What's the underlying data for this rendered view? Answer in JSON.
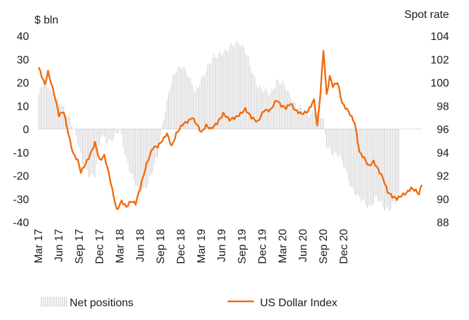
{
  "chart_data": {
    "type": "bar+line",
    "left_axis": {
      "unit": "$ bln",
      "range": [
        -40,
        40
      ],
      "ticks": [
        "40",
        "30",
        "20",
        "10",
        "0",
        "-10",
        "-20",
        "-30",
        "-40"
      ]
    },
    "right_axis": {
      "unit": "Spot rate",
      "range": [
        88,
        104
      ],
      "ticks": [
        "104",
        "102",
        "100",
        "98",
        "96",
        "94",
        "92",
        "90",
        "88"
      ]
    },
    "x_tick_labels": [
      "Mar 17",
      "Jun 17",
      "Sep 17",
      "Dec 17",
      "Mar 18",
      "Jun 18",
      "Sep 18",
      "Dec 18",
      "Mar 19",
      "Jun 19",
      "Sep 19",
      "Dec 19",
      "Mar 20",
      "Jun 20",
      "Sep 20",
      "Dec 20"
    ],
    "grid": false,
    "legend_position": "bottom",
    "legend": {
      "bars_label": "Net positions",
      "line_label": "US Dollar Index"
    },
    "colors": {
      "bars": "#c8c8c8",
      "line": "#f26a0a",
      "text": "#1a1a1a"
    },
    "bars_series": {
      "name": "Net positions",
      "unit": "$ bln",
      "start": "Mar 17",
      "frequency": "weekly",
      "anchors": [
        [
          0,
          15
        ],
        [
          4,
          20
        ],
        [
          8,
          17
        ],
        [
          12,
          12
        ],
        [
          16,
          8
        ],
        [
          20,
          5
        ],
        [
          24,
          -3
        ],
        [
          28,
          -15
        ],
        [
          32,
          -19
        ],
        [
          36,
          -20
        ],
        [
          40,
          -3
        ],
        [
          44,
          -5
        ],
        [
          48,
          -4
        ],
        [
          52,
          -1
        ],
        [
          56,
          -12
        ],
        [
          60,
          -21
        ],
        [
          64,
          -27
        ],
        [
          68,
          -25
        ],
        [
          72,
          -20
        ],
        [
          76,
          -12
        ],
        [
          80,
          6
        ],
        [
          84,
          18
        ],
        [
          88,
          25
        ],
        [
          92,
          28
        ],
        [
          96,
          22
        ],
        [
          100,
          15
        ],
        [
          104,
          22
        ],
        [
          108,
          26
        ],
        [
          112,
          31
        ],
        [
          116,
          33
        ],
        [
          120,
          33
        ],
        [
          124,
          36
        ],
        [
          128,
          38
        ],
        [
          132,
          33
        ],
        [
          136,
          25
        ],
        [
          140,
          19
        ],
        [
          144,
          16
        ],
        [
          148,
          15
        ],
        [
          152,
          21
        ],
        [
          156,
          19
        ],
        [
          160,
          15
        ],
        [
          164,
          11
        ],
        [
          168,
          8
        ],
        [
          172,
          6
        ],
        [
          176,
          8
        ],
        [
          180,
          5
        ],
        [
          182,
          3
        ],
        [
          184,
          -7
        ],
        [
          188,
          -10
        ],
        [
          192,
          -12
        ],
        [
          196,
          -17
        ],
        [
          200,
          -25
        ],
        [
          204,
          -30
        ],
        [
          208,
          -31
        ],
        [
          212,
          -33
        ],
        [
          216,
          -30
        ],
        [
          220,
          -33
        ],
        [
          224,
          -34
        ],
        [
          228,
          -32
        ],
        [
          230,
          -30
        ]
      ]
    },
    "line_series": {
      "name": "US Dollar Index",
      "unit": "index",
      "start": "Mar 17",
      "frequency": "weekly",
      "anchors": [
        [
          0,
          101.3
        ],
        [
          4,
          99.8
        ],
        [
          6,
          100.9
        ],
        [
          10,
          99.0
        ],
        [
          13,
          97.2
        ],
        [
          16,
          97.5
        ],
        [
          19,
          95.6
        ],
        [
          22,
          93.9
        ],
        [
          25,
          93.3
        ],
        [
          27,
          92.3
        ],
        [
          30,
          93.0
        ],
        [
          33,
          93.8
        ],
        [
          36,
          94.8
        ],
        [
          39,
          93.3
        ],
        [
          42,
          93.7
        ],
        [
          45,
          92.1
        ],
        [
          47,
          90.8
        ],
        [
          50,
          89.0
        ],
        [
          53,
          89.8
        ],
        [
          56,
          89.3
        ],
        [
          59,
          89.8
        ],
        [
          62,
          89.6
        ],
        [
          65,
          91.0
        ],
        [
          69,
          93.0
        ],
        [
          73,
          94.4
        ],
        [
          76,
          94.5
        ],
        [
          79,
          95.0
        ],
        [
          82,
          95.6
        ],
        [
          85,
          94.5
        ],
        [
          88,
          95.6
        ],
        [
          92,
          96.4
        ],
        [
          96,
          96.7
        ],
        [
          98,
          97.0
        ],
        [
          101,
          96.4
        ],
        [
          104,
          95.7
        ],
        [
          107,
          96.3
        ],
        [
          110,
          96.0
        ],
        [
          114,
          96.5
        ],
        [
          118,
          97.3
        ],
        [
          122,
          96.8
        ],
        [
          126,
          97.0
        ],
        [
          129,
          97.3
        ],
        [
          132,
          97.7
        ],
        [
          136,
          97.0
        ],
        [
          140,
          96.6
        ],
        [
          144,
          97.6
        ],
        [
          148,
          97.6
        ],
        [
          152,
          98.5
        ],
        [
          155,
          98.0
        ],
        [
          158,
          97.8
        ],
        [
          161,
          98.2
        ],
        [
          164,
          97.6
        ],
        [
          168,
          97.3
        ],
        [
          172,
          97.5
        ],
        [
          176,
          98.5
        ],
        [
          178,
          96.2
        ],
        [
          180,
          99.0
        ],
        [
          182,
          102.8
        ],
        [
          184,
          98.9
        ],
        [
          186,
          100.5
        ],
        [
          188,
          99.7
        ],
        [
          191,
          100.0
        ],
        [
          194,
          98.2
        ],
        [
          198,
          97.5
        ],
        [
          202,
          96.5
        ],
        [
          205,
          94.0
        ],
        [
          208,
          93.5
        ],
        [
          211,
          92.8
        ],
        [
          214,
          93.2
        ],
        [
          217,
          92.5
        ],
        [
          220,
          91.8
        ],
        [
          223,
          90.6
        ],
        [
          226,
          90.2
        ],
        [
          229,
          90.0
        ],
        [
          232,
          90.3
        ],
        [
          235,
          90.5
        ],
        [
          238,
          90.9
        ],
        [
          241,
          90.7
        ],
        [
          243,
          90.4
        ],
        [
          245,
          91.3
        ]
      ]
    }
  }
}
